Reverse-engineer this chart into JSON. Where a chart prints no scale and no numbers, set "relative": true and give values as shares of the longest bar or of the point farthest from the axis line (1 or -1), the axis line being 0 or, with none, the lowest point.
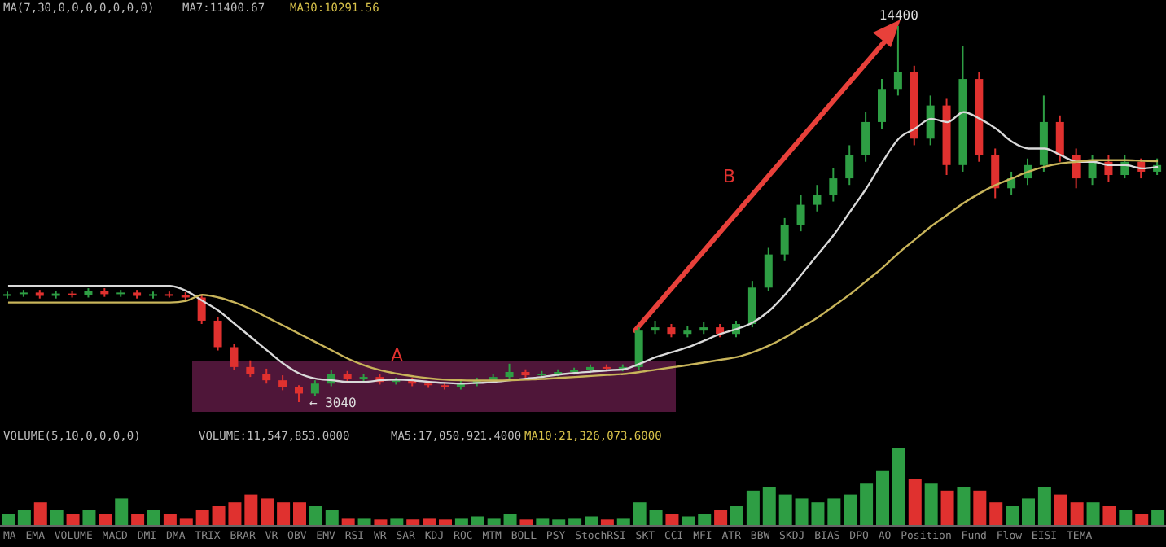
{
  "chart_data": [
    {
      "type": "candlestick",
      "categories": [
        null,
        null,
        null,
        null,
        null,
        null,
        null,
        null,
        null,
        null,
        null,
        null,
        null,
        null,
        null,
        null,
        null,
        null,
        null,
        null,
        null,
        null,
        null,
        null,
        null,
        null,
        null,
        null,
        null,
        null,
        null,
        null,
        null,
        null,
        null,
        null,
        null,
        null,
        null,
        null,
        null,
        null,
        null,
        null,
        null,
        null,
        null,
        null,
        null,
        null,
        null,
        null,
        null,
        null,
        null,
        null,
        null,
        null,
        null,
        null,
        null,
        null,
        null,
        null,
        null,
        null,
        null,
        null,
        null,
        null,
        null,
        null
      ],
      "ohlc": [
        [
          6250,
          6380,
          6170,
          6300
        ],
        [
          6300,
          6430,
          6220,
          6350
        ],
        [
          6350,
          6430,
          6170,
          6250
        ],
        [
          6250,
          6400,
          6170,
          6320
        ],
        [
          6320,
          6400,
          6200,
          6280
        ],
        [
          6280,
          6480,
          6200,
          6400
        ],
        [
          6400,
          6480,
          6220,
          6300
        ],
        [
          6300,
          6430,
          6220,
          6350
        ],
        [
          6350,
          6430,
          6170,
          6250
        ],
        [
          6250,
          6380,
          6170,
          6300
        ],
        [
          6300,
          6380,
          6200,
          6280
        ],
        [
          6280,
          6360,
          6120,
          6200
        ],
        [
          6200,
          6280,
          5400,
          5500
        ],
        [
          5500,
          5600,
          4600,
          4700
        ],
        [
          4700,
          4800,
          4000,
          4100
        ],
        [
          4100,
          4300,
          3800,
          3900
        ],
        [
          3900,
          4050,
          3600,
          3700
        ],
        [
          3700,
          3850,
          3400,
          3500
        ],
        [
          3500,
          3550,
          3040,
          3300
        ],
        [
          3300,
          3700,
          3220,
          3600
        ],
        [
          3600,
          4000,
          3520,
          3900
        ],
        [
          3900,
          3980,
          3670,
          3750
        ],
        [
          3750,
          3880,
          3670,
          3800
        ],
        [
          3800,
          3880,
          3570,
          3650
        ],
        [
          3650,
          3780,
          3570,
          3700
        ],
        [
          3700,
          3780,
          3520,
          3600
        ],
        [
          3600,
          3680,
          3470,
          3550
        ],
        [
          3550,
          3630,
          3420,
          3500
        ],
        [
          3500,
          3680,
          3420,
          3600
        ],
        [
          3600,
          3780,
          3520,
          3700
        ],
        [
          3700,
          3880,
          3620,
          3800
        ],
        [
          3800,
          4200,
          3720,
          3950
        ],
        [
          3950,
          4030,
          3770,
          3850
        ],
        [
          3850,
          3980,
          3770,
          3900
        ],
        [
          3900,
          4030,
          3820,
          3950
        ],
        [
          3950,
          4080,
          3870,
          4000
        ],
        [
          4000,
          4180,
          3920,
          4100
        ],
        [
          4100,
          4180,
          3970,
          4050
        ],
        [
          4050,
          4180,
          3970,
          4100
        ],
        [
          4100,
          5300,
          4020,
          5200
        ],
        [
          5200,
          5500,
          5100,
          5300
        ],
        [
          5300,
          5400,
          5000,
          5100
        ],
        [
          5100,
          5350,
          5000,
          5200
        ],
        [
          5200,
          5450,
          5100,
          5300
        ],
        [
          5300,
          5400,
          5000,
          5100
        ],
        [
          5100,
          5500,
          5000,
          5400
        ],
        [
          5400,
          6700,
          5300,
          6500
        ],
        [
          6500,
          7700,
          6400,
          7500
        ],
        [
          7500,
          8600,
          7300,
          8400
        ],
        [
          8400,
          9300,
          8200,
          9000
        ],
        [
          9000,
          9600,
          8800,
          9300
        ],
        [
          9300,
          10100,
          9100,
          9800
        ],
        [
          9800,
          10800,
          9600,
          10500
        ],
        [
          10500,
          11800,
          10300,
          11500
        ],
        [
          11500,
          12800,
          11300,
          12500
        ],
        [
          12500,
          14400,
          12300,
          13000
        ],
        [
          13000,
          13200,
          10800,
          11000
        ],
        [
          11000,
          12300,
          10800,
          12000
        ],
        [
          12000,
          12200,
          9900,
          10200
        ],
        [
          10200,
          13800,
          10000,
          12800
        ],
        [
          12800,
          13000,
          10300,
          10500
        ],
        [
          10500,
          10700,
          9200,
          9500
        ],
        [
          9500,
          10000,
          9300,
          9800
        ],
        [
          9800,
          10400,
          9600,
          10200
        ],
        [
          10200,
          12300,
          10000,
          11500
        ],
        [
          11500,
          11700,
          10300,
          10500
        ],
        [
          10500,
          10700,
          9500,
          9800
        ],
        [
          9800,
          10500,
          9600,
          10300
        ],
        [
          10300,
          10500,
          9700,
          9900
        ],
        [
          9900,
          10500,
          9800,
          10300
        ],
        [
          10300,
          10400,
          9800,
          10000
        ],
        [
          10000,
          10400,
          9900,
          10200
        ]
      ],
      "colors": [
        "#2e9e44",
        "#2e9e44",
        "#e0312f",
        "#2e9e44",
        "#e0312f",
        "#2e9e44",
        "#e0312f",
        "#2e9e44",
        "#e0312f",
        "#2e9e44",
        "#e0312f",
        "#e0312f",
        "#e0312f",
        "#e0312f",
        "#e0312f",
        "#e0312f",
        "#e0312f",
        "#e0312f",
        "#e0312f",
        "#2e9e44",
        "#2e9e44",
        "#e0312f",
        "#2e9e44",
        "#e0312f",
        "#2e9e44",
        "#e0312f",
        "#e0312f",
        "#e0312f",
        "#2e9e44",
        "#2e9e44",
        "#2e9e44",
        "#2e9e44",
        "#e0312f",
        "#2e9e44",
        "#2e9e44",
        "#2e9e44",
        "#2e9e44",
        "#e0312f",
        "#2e9e44",
        "#2e9e44",
        "#2e9e44",
        "#e0312f",
        "#2e9e44",
        "#2e9e44",
        "#e0312f",
        "#2e9e44",
        "#2e9e44",
        "#2e9e44",
        "#2e9e44",
        "#2e9e44",
        "#2e9e44",
        "#2e9e44",
        "#2e9e44",
        "#2e9e44",
        "#2e9e44",
        "#2e9e44",
        "#e0312f",
        "#2e9e44",
        "#e0312f",
        "#2e9e44",
        "#e0312f",
        "#e0312f",
        "#2e9e44",
        "#2e9e44",
        "#2e9e44",
        "#e0312f",
        "#e0312f",
        "#2e9e44",
        "#e0312f",
        "#2e9e44",
        "#e0312f",
        "#2e9e44"
      ],
      "tick_labels": false,
      "series": [
        {
          "type": "line",
          "color": "#d9d9d9",
          "values": [
            6550,
            6550,
            6550,
            6550,
            6550,
            6550,
            6550,
            6550,
            6550,
            6550,
            6550,
            6400,
            6100,
            5800,
            5400,
            5000,
            4600,
            4200,
            3900,
            3750,
            3700,
            3650,
            3650,
            3700,
            3720,
            3700,
            3650,
            3620,
            3600,
            3620,
            3650,
            3700,
            3750,
            3800,
            3870,
            3920,
            3960,
            4000,
            4030,
            4200,
            4400,
            4550,
            4700,
            4900,
            5100,
            5250,
            5450,
            5800,
            6300,
            6900,
            7500,
            8100,
            8800,
            9500,
            10300,
            11000,
            11300,
            11600,
            11500,
            11800,
            11600,
            11300,
            10900,
            10700,
            10700,
            10500,
            10300,
            10300,
            10200,
            10200,
            10100,
            10150
          ]
        },
        {
          "type": "line",
          "color": "#c8b45a",
          "values": [
            6050,
            6050,
            6050,
            6050,
            6050,
            6050,
            6050,
            6050,
            6050,
            6050,
            6050,
            6100,
            6280,
            6200,
            6050,
            5850,
            5600,
            5350,
            5100,
            4850,
            4600,
            4350,
            4150,
            4000,
            3900,
            3820,
            3760,
            3720,
            3700,
            3690,
            3690,
            3700,
            3720,
            3740,
            3770,
            3800,
            3830,
            3860,
            3890,
            3950,
            4020,
            4090,
            4160,
            4240,
            4320,
            4400,
            4550,
            4750,
            5000,
            5300,
            5600,
            5950,
            6300,
            6700,
            7100,
            7550,
            7950,
            8350,
            8700,
            9050,
            9350,
            9600,
            9800,
            10000,
            10150,
            10250,
            10300,
            10350,
            10350,
            10350,
            10330,
            10320
          ]
        }
      ],
      "annotations": [
        "MA(7,30,0,0,0,0,0,0,0)",
        "MA7:11400.67",
        "MA30:10291.56",
        "A",
        "B",
        "14400",
        "← 3040"
      ]
    },
    {
      "type": "bar",
      "relative": true,
      "categories": [
        null,
        null,
        null,
        null,
        null,
        null,
        null,
        null,
        null,
        null,
        null,
        null,
        null,
        null,
        null,
        null,
        null,
        null,
        null,
        null,
        null,
        null,
        null,
        null,
        null,
        null,
        null,
        null,
        null,
        null,
        null,
        null,
        null,
        null,
        null,
        null,
        null,
        null,
        null,
        null,
        null,
        null,
        null,
        null,
        null,
        null,
        null,
        null,
        null,
        null,
        null,
        null,
        null,
        null,
        null,
        null,
        null,
        null,
        null,
        null,
        null,
        null,
        null,
        null,
        null,
        null,
        null,
        null,
        null,
        null,
        null,
        null
      ],
      "values": [
        0.15,
        0.2,
        0.3,
        0.2,
        0.15,
        0.2,
        0.15,
        0.35,
        0.15,
        0.2,
        0.15,
        0.1,
        0.2,
        0.25,
        0.3,
        0.4,
        0.35,
        0.3,
        0.3,
        0.25,
        0.2,
        0.1,
        0.1,
        0.08,
        0.1,
        0.08,
        0.1,
        0.08,
        0.1,
        0.12,
        0.1,
        0.15,
        0.08,
        0.1,
        0.08,
        0.1,
        0.12,
        0.08,
        0.1,
        0.3,
        0.2,
        0.15,
        0.12,
        0.15,
        0.2,
        0.25,
        0.45,
        0.5,
        0.4,
        0.35,
        0.3,
        0.35,
        0.4,
        0.55,
        0.7,
        1,
        0.6,
        0.55,
        0.45,
        0.5,
        0.45,
        0.3,
        0.25,
        0.35,
        0.5,
        0.4,
        0.3,
        0.3,
        0.25,
        0.2,
        0.15,
        0.2
      ],
      "colors": [
        "#2e9e44",
        "#2e9e44",
        "#e0312f",
        "#2e9e44",
        "#e0312f",
        "#2e9e44",
        "#e0312f",
        "#2e9e44",
        "#e0312f",
        "#2e9e44",
        "#e0312f",
        "#e0312f",
        "#e0312f",
        "#e0312f",
        "#e0312f",
        "#e0312f",
        "#e0312f",
        "#e0312f",
        "#e0312f",
        "#2e9e44",
        "#2e9e44",
        "#e0312f",
        "#2e9e44",
        "#e0312f",
        "#2e9e44",
        "#e0312f",
        "#e0312f",
        "#e0312f",
        "#2e9e44",
        "#2e9e44",
        "#2e9e44",
        "#2e9e44",
        "#e0312f",
        "#2e9e44",
        "#2e9e44",
        "#2e9e44",
        "#2e9e44",
        "#e0312f",
        "#2e9e44",
        "#2e9e44",
        "#2e9e44",
        "#e0312f",
        "#2e9e44",
        "#2e9e44",
        "#e0312f",
        "#2e9e44",
        "#2e9e44",
        "#2e9e44",
        "#2e9e44",
        "#2e9e44",
        "#2e9e44",
        "#2e9e44",
        "#2e9e44",
        "#2e9e44",
        "#2e9e44",
        "#2e9e44",
        "#e0312f",
        "#2e9e44",
        "#e0312f",
        "#2e9e44",
        "#e0312f",
        "#e0312f",
        "#2e9e44",
        "#2e9e44",
        "#2e9e44",
        "#e0312f",
        "#e0312f",
        "#2e9e44",
        "#e0312f",
        "#2e9e44",
        "#e0312f",
        "#2e9e44"
      ],
      "annotations": [
        "VOLUME(5,10,0,0,0,0)",
        "VOLUME:11,547,853.0000",
        "MA5:17,050,921.4000",
        "MA10:21,326,073.6000",
        "MA EMA VOLUME MACD DMI DMA TRIX BRAR VR OBV EMV RSI WR SAR KDJ ROC MTM BOLL PSY StochRSI SKT CCI MFI ATR BBW SKDJ BIAS DPO AO Position Fund Flow EISI TEMA"
      ]
    }
  ]
}
